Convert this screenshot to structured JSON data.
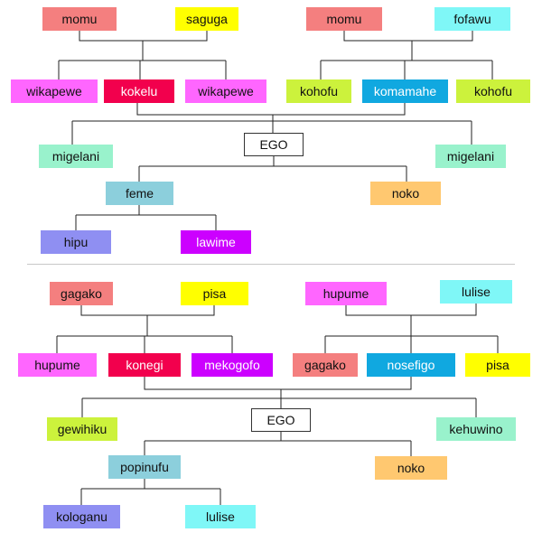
{
  "colors": {
    "salmon": "#f47f7f",
    "yellow": "#ffff00",
    "cyan": "#7ff7f7",
    "magenta": "#ff66ff",
    "crimson": "#f2004d",
    "lime": "#ccf23c",
    "blue": "#10a8e0",
    "mint": "#99f2cc",
    "steel": "#8ccfdc",
    "orange": "#ffc870",
    "lavender": "#8f8ff2",
    "violet": "#cc00ff",
    "ego": "#ffffff"
  },
  "diagrams": [
    {
      "nodes": {
        "ff": {
          "label": "momu",
          "color": "salmon"
        },
        "fm": {
          "label": "saguga",
          "color": "yellow"
        },
        "mf": {
          "label": "momu",
          "color": "salmon"
        },
        "mm": {
          "label": "fofawu",
          "color": "cyan"
        },
        "fz1": {
          "label": "wikapewe",
          "color": "magenta"
        },
        "f": {
          "label": "kokelu",
          "color": "crimson"
        },
        "fz2": {
          "label": "wikapewe",
          "color": "magenta"
        },
        "mb1": {
          "label": "kohofu",
          "color": "lime"
        },
        "m": {
          "label": "komamahe",
          "color": "blue"
        },
        "mb2": {
          "label": "kohofu",
          "color": "lime"
        },
        "sibl": {
          "label": "migelani",
          "color": "mint"
        },
        "ego": {
          "label": "EGO",
          "color": "ego"
        },
        "sibr": {
          "label": "migelani",
          "color": "mint"
        },
        "c1": {
          "label": "feme",
          "color": "steel"
        },
        "c2": {
          "label": "noko",
          "color": "orange"
        },
        "gc1": {
          "label": "hipu",
          "color": "lavender"
        },
        "gc2": {
          "label": "lawime",
          "color": "violet"
        }
      }
    },
    {
      "nodes": {
        "ff": {
          "label": "gagako",
          "color": "salmon"
        },
        "fm": {
          "label": "pisa",
          "color": "yellow"
        },
        "mf": {
          "label": "hupume",
          "color": "magenta"
        },
        "mm": {
          "label": "lulise",
          "color": "cyan"
        },
        "fz1": {
          "label": "hupume",
          "color": "magenta"
        },
        "f": {
          "label": "konegi",
          "color": "crimson"
        },
        "fz2": {
          "label": "mekogofo",
          "color": "violet"
        },
        "mb1": {
          "label": "gagako",
          "color": "salmon"
        },
        "m": {
          "label": "nosefigo",
          "color": "blue"
        },
        "mb2": {
          "label": "pisa",
          "color": "yellow"
        },
        "sibl": {
          "label": "gewihiku",
          "color": "lime"
        },
        "ego": {
          "label": "EGO",
          "color": "ego"
        },
        "sibr": {
          "label": "kehuwino",
          "color": "mint"
        },
        "c1": {
          "label": "popinufu",
          "color": "steel"
        },
        "c2": {
          "label": "noko",
          "color": "orange"
        },
        "gc1": {
          "label": "kologanu",
          "color": "lavender"
        },
        "gc2": {
          "label": "lulise",
          "color": "cyan"
        }
      }
    }
  ]
}
